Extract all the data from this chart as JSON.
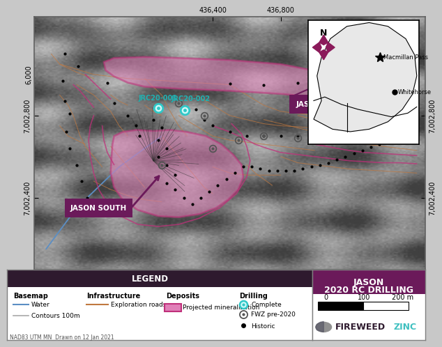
{
  "title_line1": "JASON",
  "title_line2": "2020 RC DRILLING",
  "legend_title": "LEGEND",
  "map_bg": "#a0a0a0",
  "legend_bg": "#ffffff",
  "legend_header_bg": "#2e1a2e",
  "title_bg": "#6b1a5a",
  "basemap_label": "Basemap",
  "water_label": "Water",
  "water_color": "#5b8ec4",
  "contour_label": "Contours 100m",
  "contour_color": "#c0c0c0",
  "infra_label": "Infrastructure",
  "roads_label": "Exploration roads",
  "roads_color": "#c07840",
  "deposits_label": "Deposits",
  "proj_min_label": "Projected mineralization",
  "proj_min_fill": "#e080b8",
  "proj_min_edge": "#c0307a",
  "drilling_label": "Drilling",
  "complete_label": "Complete",
  "fwz_label": "FWZ pre-2020",
  "historic_label": "Historic",
  "complete_color": "#30c8c8",
  "fwz_color": "#606060",
  "historic_color": "#000000",
  "logo_text_dark": "FIREWEED",
  "logo_text_cyan": "ZINC",
  "logo_dark_color": "#2e1a2e",
  "logo_cyan_color": "#40c0c0",
  "datum_text": "NAD83 UTM MN  Drawn on 12 Jan 2021",
  "jason_main_label": "JASON MAIN",
  "jason_south_label": "JASON SOUTH",
  "jrc001_label": "JRC20-001",
  "jrc002_label": "JRC20-002",
  "macmillan_label": "Macmillan Pass",
  "whitehorse_label": "Whitehorse",
  "outer_border": "#808080",
  "tick_label_color": "#000000"
}
